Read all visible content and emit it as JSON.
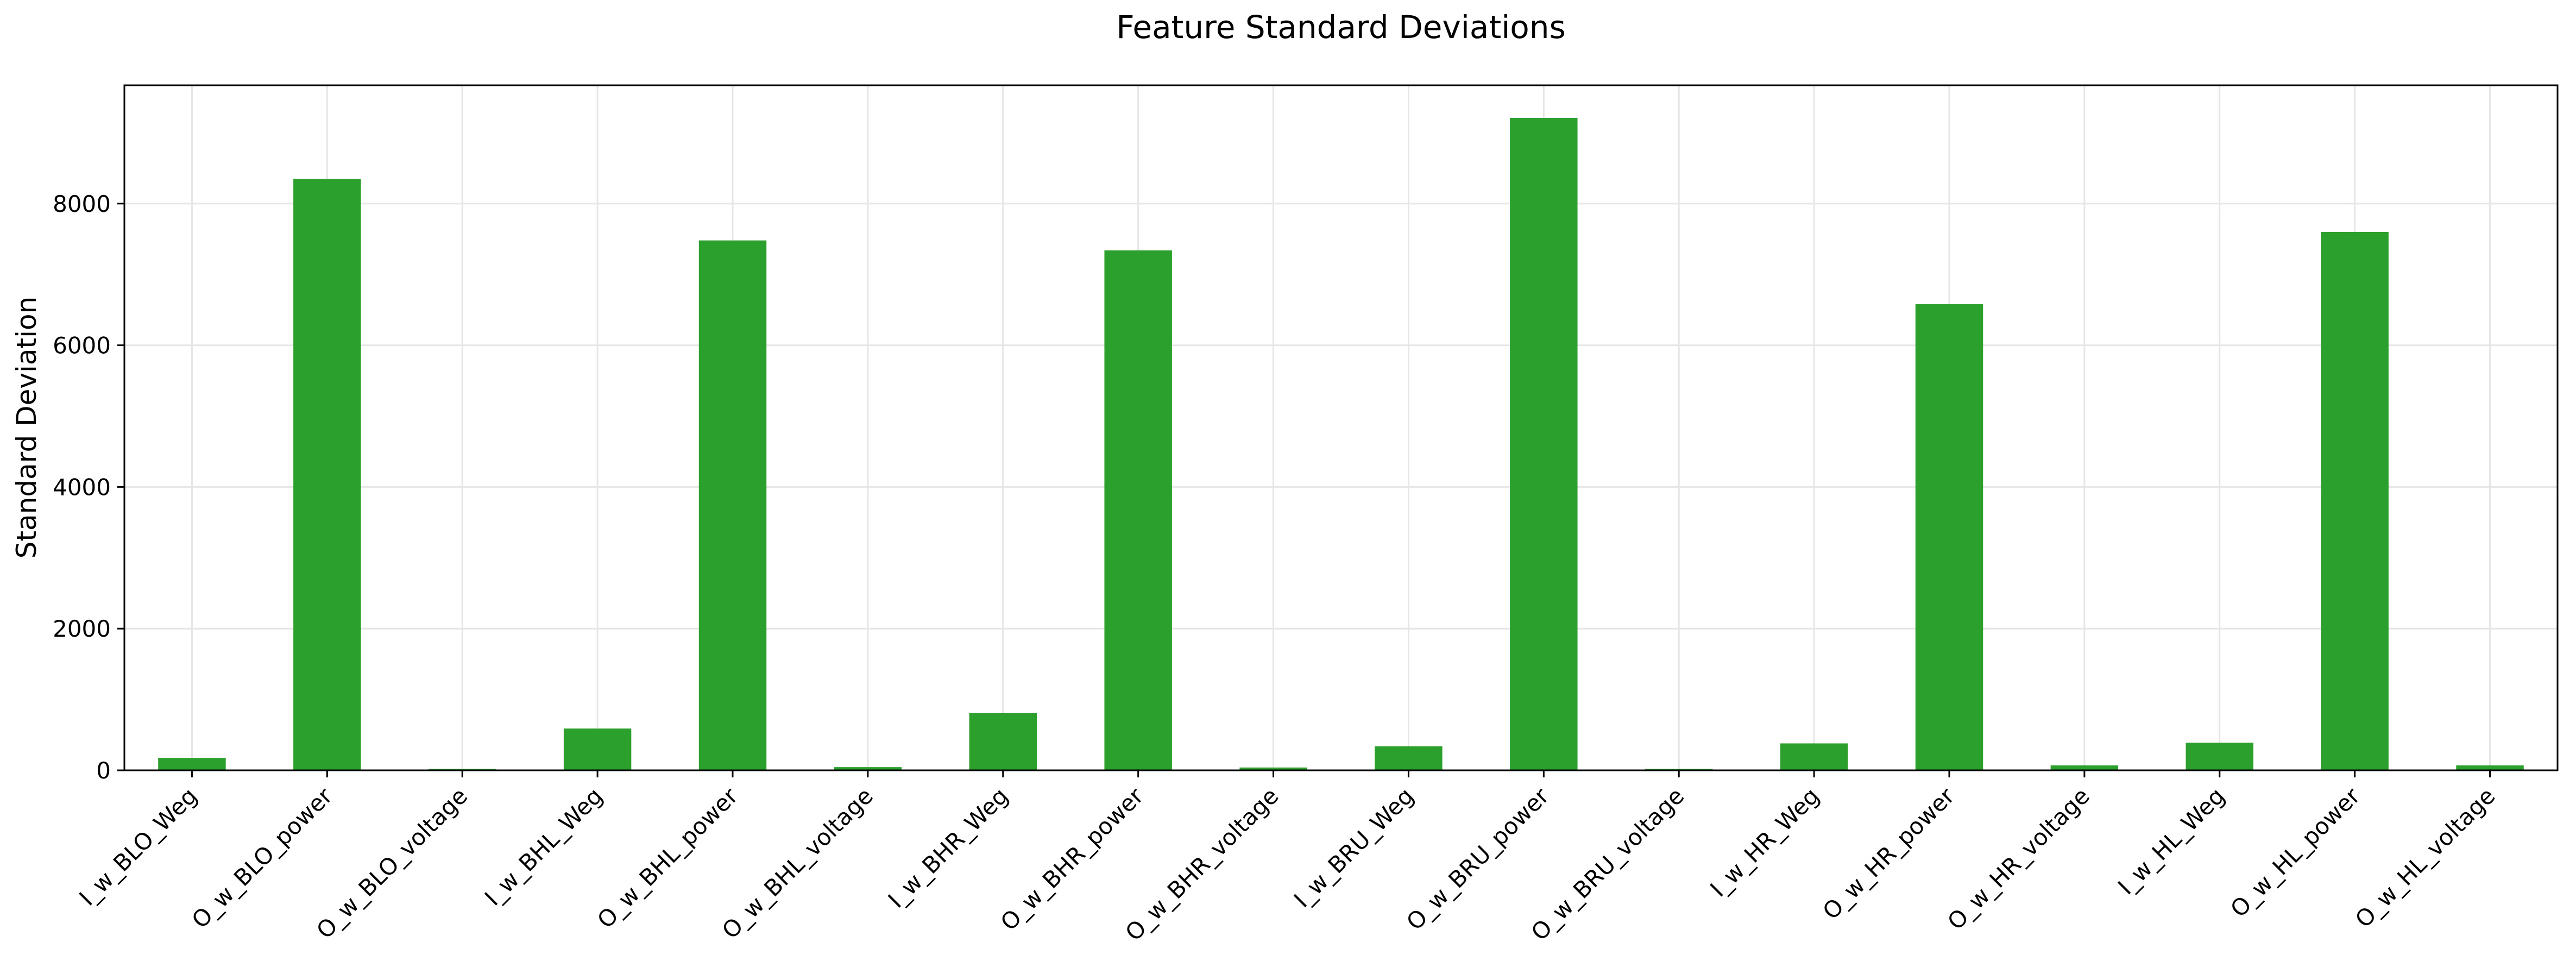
{
  "chart_data": {
    "type": "bar",
    "title": "Feature Standard Deviations",
    "xlabel": "",
    "ylabel": "Standard Deviation",
    "categories": [
      "I_w_BLO_Weg",
      "O_w_BLO_power",
      "O_w_BLO_voltage",
      "I_w_BHL_Weg",
      "O_w_BHL_power",
      "O_w_BHL_voltage",
      "I_w_BHR_Weg",
      "O_w_BHR_power",
      "O_w_BHR_voltage",
      "I_w_BRU_Weg",
      "O_w_BRU_power",
      "O_w_BRU_voltage",
      "I_w_HR_Weg",
      "O_w_HR_power",
      "O_w_HR_voltage",
      "I_w_HL_Weg",
      "O_w_HL_power",
      "O_w_HL_voltage"
    ],
    "values": [
      175,
      8350,
      20,
      590,
      7480,
      45,
      810,
      7340,
      40,
      340,
      9210,
      20,
      380,
      6580,
      70,
      390,
      7600,
      70
    ],
    "ylim": [
      0,
      9670
    ],
    "yticks": [
      0,
      2000,
      4000,
      6000,
      8000
    ],
    "ytick_labels": [
      "0",
      "2000",
      "4000",
      "6000",
      "8000"
    ],
    "grid": true,
    "bar_color": "#2ca02c",
    "grid_color": "#e6e6e6",
    "axis_color": "#000000"
  }
}
